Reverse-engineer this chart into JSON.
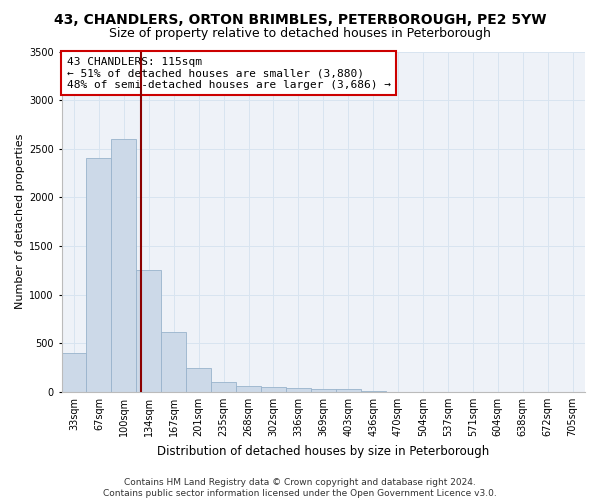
{
  "title1": "43, CHANDLERS, ORTON BRIMBLES, PETERBOROUGH, PE2 5YW",
  "title2": "Size of property relative to detached houses in Peterborough",
  "xlabel": "Distribution of detached houses by size in Peterborough",
  "ylabel": "Number of detached properties",
  "footer1": "Contains HM Land Registry data © Crown copyright and database right 2024.",
  "footer2": "Contains public sector information licensed under the Open Government Licence v3.0.",
  "annotation_title": "43 CHANDLERS: 115sqm",
  "annotation_line1": "← 51% of detached houses are smaller (3,880)",
  "annotation_line2": "48% of semi-detached houses are larger (3,686) →",
  "bar_labels": [
    "33sqm",
    "67sqm",
    "100sqm",
    "134sqm",
    "167sqm",
    "201sqm",
    "235sqm",
    "268sqm",
    "302sqm",
    "336sqm",
    "369sqm",
    "403sqm",
    "436sqm",
    "470sqm",
    "504sqm",
    "537sqm",
    "571sqm",
    "604sqm",
    "638sqm",
    "672sqm",
    "705sqm"
  ],
  "bar_values": [
    400,
    2400,
    2600,
    1250,
    620,
    250,
    100,
    60,
    50,
    40,
    25,
    25,
    8,
    4,
    2,
    1,
    1,
    1,
    1,
    0,
    0
  ],
  "bar_color": "#ccd9e8",
  "bar_edge_color": "#99b3cc",
  "vline_color": "#8b0000",
  "vline_x": 2.67,
  "annotation_box_facecolor": "#ffffff",
  "annotation_box_edgecolor": "#cc0000",
  "grid_color": "#d8e4f0",
  "background_color": "#ffffff",
  "plot_bg_color": "#eef2f8",
  "ylim": [
    0,
    3500
  ],
  "yticks": [
    0,
    500,
    1000,
    1500,
    2000,
    2500,
    3000,
    3500
  ],
  "title1_fontsize": 10,
  "title2_fontsize": 9,
  "xlabel_fontsize": 8.5,
  "ylabel_fontsize": 8,
  "tick_fontsize": 7,
  "footer_fontsize": 6.5,
  "annotation_fontsize": 8
}
